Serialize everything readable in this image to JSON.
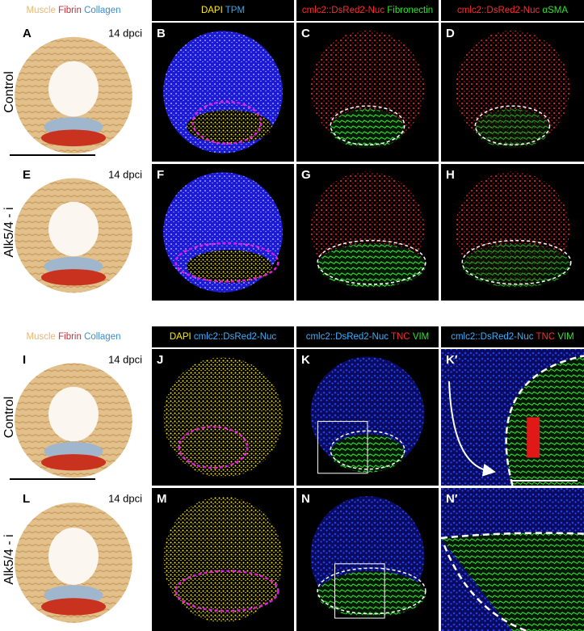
{
  "figure": {
    "blocks": [
      {
        "headers": [
          [
            {
              "text": "Muscle",
              "color": "#f2b566"
            },
            {
              "text": "Fibrin",
              "color": "#c3303a"
            },
            {
              "text": "Collagen",
              "color": "#3a8ad0"
            }
          ],
          [
            {
              "text": "DAPI",
              "color": "#ffee00"
            },
            {
              "text": "TPM",
              "color": "#3aa8f0"
            }
          ],
          [
            {
              "text": "cmlc2::DsRed2-Nuc",
              "color": "#ff2a2a"
            },
            {
              "text": "Fibronectin",
              "color": "#33e033"
            }
          ],
          [
            {
              "text": "cmlc2::DsRed2-Nuc",
              "color": "#ff2a2a"
            },
            {
              "text": "αSMA",
              "color": "#33e033"
            }
          ]
        ],
        "rows": [
          {
            "label": "Control",
            "panels": [
              {
                "letter": "A",
                "note": "14 dpci"
              },
              {
                "letter": "B"
              },
              {
                "letter": "C"
              },
              {
                "letter": "D"
              }
            ]
          },
          {
            "label": "Alk5/4 - i",
            "panels": [
              {
                "letter": "E",
                "note": "14 dpci"
              },
              {
                "letter": "F"
              },
              {
                "letter": "G"
              },
              {
                "letter": "H"
              }
            ]
          }
        ]
      },
      {
        "headers": [
          [
            {
              "text": "Muscle",
              "color": "#f2b566"
            },
            {
              "text": "Fibrin",
              "color": "#c3303a"
            },
            {
              "text": "Collagen",
              "color": "#3a8ad0"
            }
          ],
          [
            {
              "text": "DAPI",
              "color": "#ffee00"
            },
            {
              "text": "cmlc2::DsRed2-Nuc",
              "color": "#3ab0ff"
            }
          ],
          [
            {
              "text": "cmlc2::DsRed2-Nuc",
              "color": "#3ab0ff"
            },
            {
              "text": "TNC",
              "color": "#ff2a2a"
            },
            {
              "text": "VIM",
              "color": "#33e033"
            }
          ],
          [
            {
              "text": "cmlc2::DsRed2-Nuc",
              "color": "#3ab0ff"
            },
            {
              "text": "TNC",
              "color": "#ff2a2a"
            },
            {
              "text": "VIM",
              "color": "#33e033"
            }
          ]
        ],
        "rows": [
          {
            "label": "Control",
            "panels": [
              {
                "letter": "I",
                "note": "14 dpci"
              },
              {
                "letter": "J"
              },
              {
                "letter": "K"
              },
              {
                "letter": "K′"
              }
            ]
          },
          {
            "label": "Alk5/4 - i",
            "panels": [
              {
                "letter": "L",
                "note": "14 dpci"
              },
              {
                "letter": "M"
              },
              {
                "letter": "N"
              },
              {
                "letter": "N′"
              }
            ]
          }
        ]
      }
    ]
  }
}
